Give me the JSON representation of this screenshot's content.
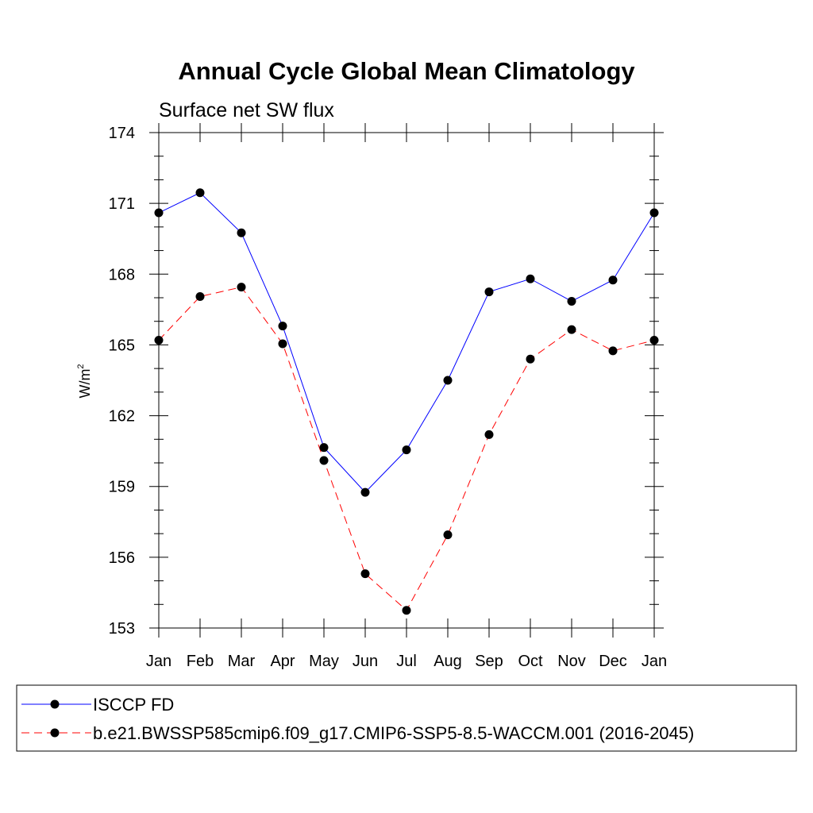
{
  "chart_data": {
    "type": "line",
    "title": "Annual Cycle Global Mean Climatology",
    "subtitle": "Surface net SW flux",
    "ylabel": "W/m",
    "ylabel_sup": "2",
    "xlabel": "",
    "categories": [
      "Jan",
      "Feb",
      "Mar",
      "Apr",
      "May",
      "Jun",
      "Jul",
      "Aug",
      "Sep",
      "Oct",
      "Nov",
      "Dec",
      "Jan"
    ],
    "ylim": [
      153,
      174
    ],
    "yticks": [
      153,
      156,
      159,
      162,
      165,
      168,
      171,
      174
    ],
    "series": [
      {
        "name": "ISCCP FD",
        "color": "#0000ff",
        "dash": "solid",
        "values": [
          170.6,
          171.45,
          169.75,
          165.8,
          160.65,
          158.75,
          160.55,
          163.5,
          167.25,
          167.8,
          166.85,
          167.75,
          170.6
        ]
      },
      {
        "name": "b.e21.BWSSP585cmip6.f09_g17.CMIP6-SSP5-8.5-WACCM.001 (2016-2045)",
        "color": "#ff0000",
        "dash": "dashed",
        "values": [
          165.2,
          167.05,
          167.45,
          165.05,
          160.1,
          155.3,
          153.75,
          156.95,
          161.2,
          164.4,
          165.65,
          164.75,
          165.2
        ]
      }
    ],
    "legend_position": "bottom"
  }
}
